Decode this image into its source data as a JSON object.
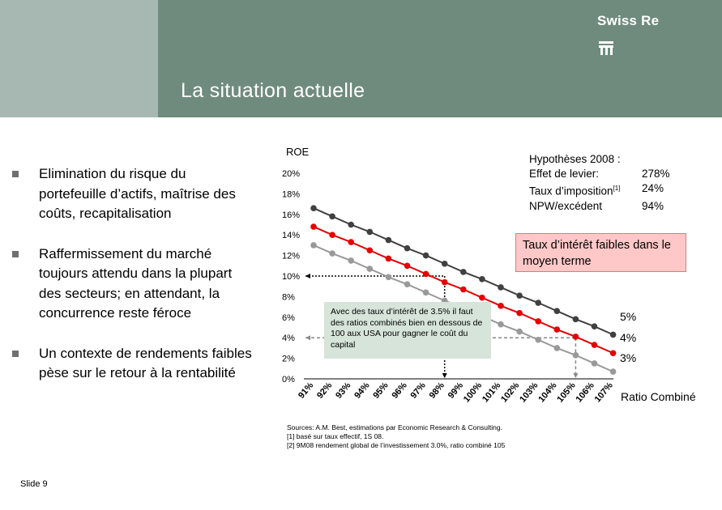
{
  "header": {
    "title": "La situation actuelle",
    "logo_text": "Swiss Re"
  },
  "bullets": [
    {
      "text": "Elimination du risque du portefeuille d’actifs, maîtrise des coûts, recapitalisation"
    },
    {
      "text": "Raffermissement du marché toujours attendu dans la plupart des secteurs; en attendant, la concurrence reste féroce"
    },
    {
      "text": "Un contexte de rendements faibles pèse sur le retour à la rentabilité"
    }
  ],
  "hypotheses": {
    "title": "Hypothèses 2008 :",
    "rows": [
      {
        "label": "Effet de levier:",
        "value": "278%"
      },
      {
        "label": "Taux d’imposition",
        "sup": "[1]",
        "value": "24%"
      },
      {
        "label": "NPW/excédent",
        "value": "94%"
      }
    ]
  },
  "callout_red": "Taux d’intérêt faibles dans le moyen terme",
  "callout_green": "Avec des taux d’intérêt de 3.5% il faut des ratios combinés bien en dessous de 100 aux USA pour gagner le coût du capital",
  "series_labels": [
    "5%",
    "4%",
    "3%"
  ],
  "sources": [
    "Sources: A.M. Best, estimations par Economic Research & Consulting.",
    "[1] basé sur taux effectif, 1S 08.",
    "[2] 9M08 rendement global de l’investissement 3.0%, ratio combiné 105"
  ],
  "slide_number": "Slide 9",
  "chart_data": {
    "type": "line",
    "title": "",
    "ylabel": "ROE",
    "xlabel": "Ratio Combiné",
    "ylim": [
      0,
      20
    ],
    "yticks": [
      "0%",
      "2%",
      "4%",
      "6%",
      "8%",
      "10%",
      "12%",
      "14%",
      "16%",
      "18%",
      "20%"
    ],
    "categories": [
      "91%",
      "92%",
      "93%",
      "94%",
      "95%",
      "96%",
      "97%",
      "98%",
      "99%",
      "100%",
      "101%",
      "102%",
      "103%",
      "104%",
      "105%",
      "106%",
      "107%"
    ],
    "series": [
      {
        "name": "5%",
        "color": "#404040",
        "values": [
          16.6,
          15.8,
          15.0,
          14.3,
          13.5,
          12.7,
          12.0,
          11.2,
          10.4,
          9.7,
          8.9,
          8.1,
          7.4,
          6.6,
          5.8,
          5.1,
          4.3
        ]
      },
      {
        "name": "4%",
        "color": "#e60000",
        "values": [
          14.8,
          14.0,
          13.3,
          12.5,
          11.7,
          11.0,
          10.2,
          9.4,
          8.7,
          7.9,
          7.1,
          6.4,
          5.6,
          4.8,
          4.1,
          3.3,
          2.5
        ]
      },
      {
        "name": "3%",
        "color": "#999999",
        "values": [
          13.0,
          12.2,
          11.5,
          10.7,
          9.9,
          9.2,
          8.4,
          7.6,
          6.9,
          6.1,
          5.3,
          4.6,
          3.8,
          3.0,
          2.3,
          1.5,
          0.7
        ]
      }
    ],
    "reference_lines": {
      "roe": 10,
      "combined_ratios": [
        "98%",
        "105%"
      ]
    }
  }
}
